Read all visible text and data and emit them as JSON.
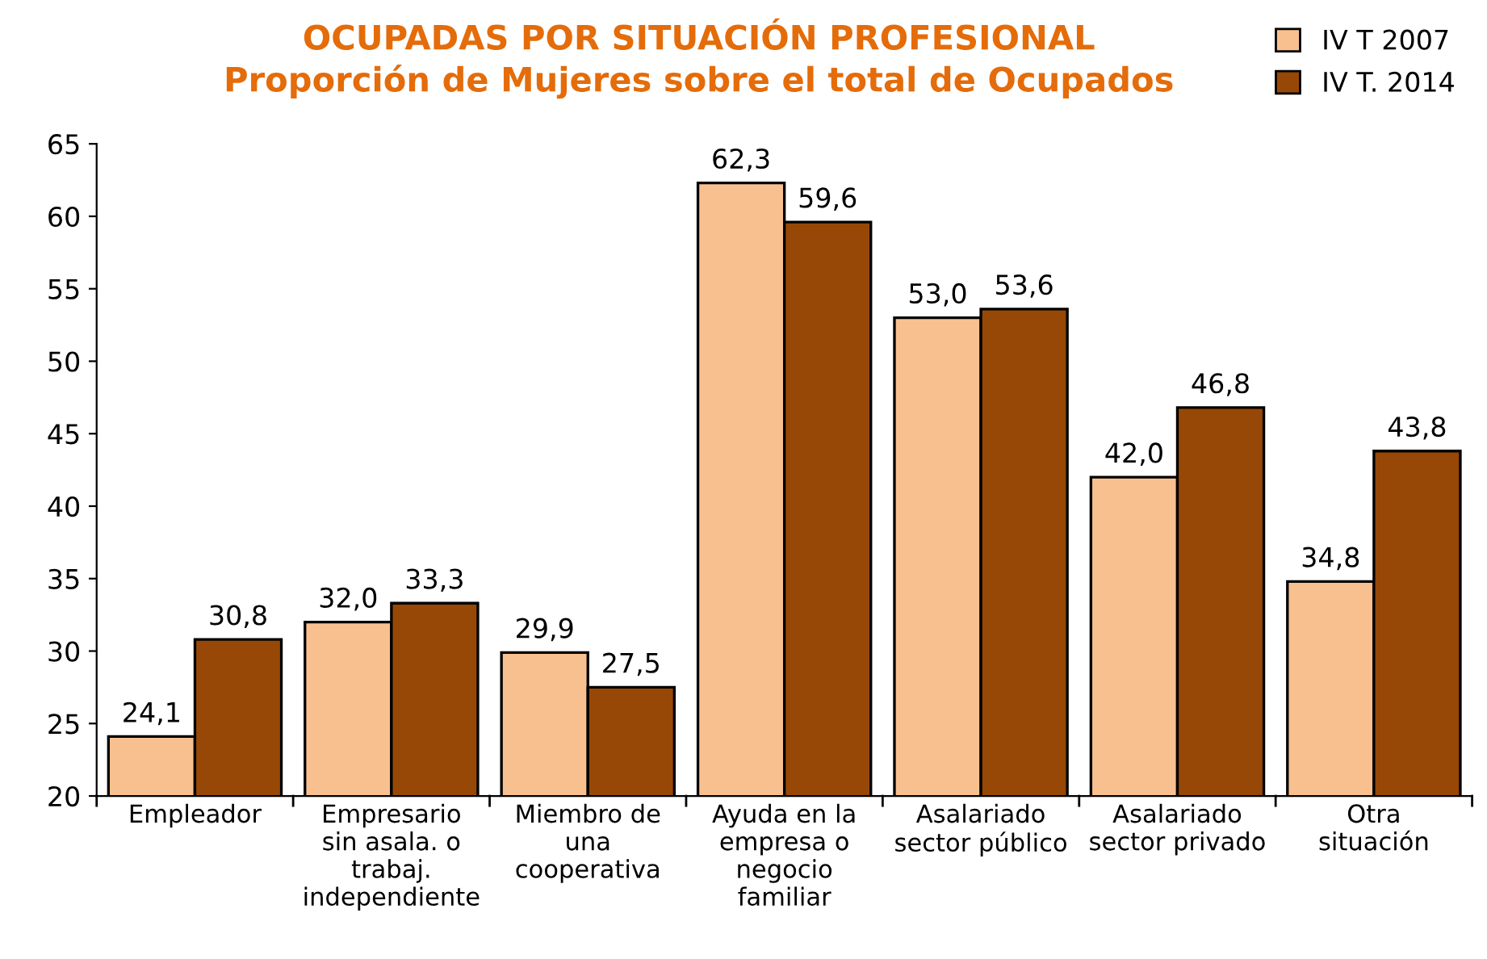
{
  "chart_data": {
    "type": "bar",
    "title": "OCUPADAS POR SITUACIÓN PROFESIONAL\nProporción de Mujeres sobre el total de Ocupados",
    "categories": [
      "Empleador",
      "Empresario\nsin asala. o\ntrabaj.\nindependiente",
      "Miembro de\nuna\ncooperativa",
      "Ayuda en la\nempresa o\nnegocio\nfamiliar",
      "Asalariado\nsector público",
      "Asalariado\nsector privado",
      "Otra\nsituación"
    ],
    "series": [
      {
        "name": "IV T 2007",
        "color": "#f9c08f",
        "values": [
          24.1,
          32.0,
          29.9,
          62.3,
          53.0,
          42.0,
          34.8
        ],
        "value_labels": [
          "24,1",
          "32,0",
          "29,9",
          "62,3",
          "53,0",
          "42,0",
          "34,8"
        ]
      },
      {
        "name": "IV T. 2014",
        "color": "#974806",
        "values": [
          30.8,
          33.3,
          27.5,
          59.6,
          53.6,
          46.8,
          43.8
        ],
        "value_labels": [
          "30,8",
          "33,3",
          "27,5",
          "59,6",
          "53,6",
          "46,8",
          "43,8"
        ]
      }
    ],
    "ylim": [
      20,
      65
    ],
    "yticks": [
      20,
      25,
      30,
      35,
      40,
      45,
      50,
      55,
      60,
      65
    ],
    "grid": false,
    "legend": "top right"
  }
}
